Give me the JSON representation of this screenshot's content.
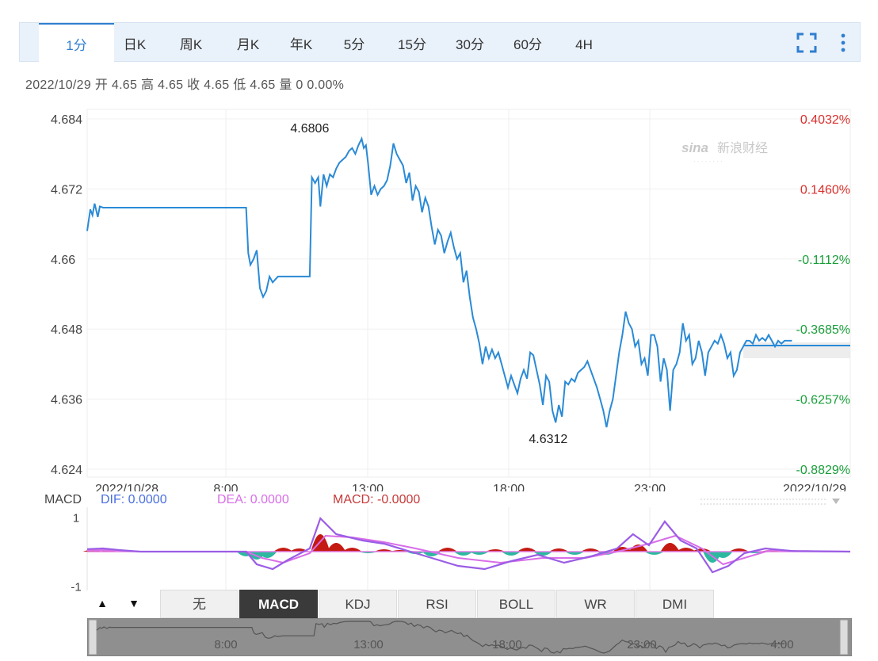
{
  "tabs": [
    {
      "label": "1分",
      "active": true
    },
    {
      "label": "日K"
    },
    {
      "label": "周K"
    },
    {
      "label": "月K"
    },
    {
      "label": "年K"
    },
    {
      "label": "5分"
    },
    {
      "label": "15分"
    },
    {
      "label": "30分"
    },
    {
      "label": "60分"
    },
    {
      "label": "4H"
    }
  ],
  "icons": {
    "fullscreen": "fullscreen-icon",
    "more": "more-vertical-icon"
  },
  "info_line": "2022/10/29 开 4.65 高 4.65 收 4.65 低 4.65 量 0 0.00%",
  "watermark": "新浪财经",
  "colors": {
    "line": "#2a8ad6",
    "up": "#d8302c",
    "down": "#1a9e3a",
    "dif": "#9b5de5",
    "hist_pos": "#c41a12",
    "hist_neg": "#2cb9a0",
    "accent": "#2f7fd0"
  },
  "chart_data": {
    "type": "line",
    "y_ticks_left": [
      "4.684",
      "4.672",
      "4.66",
      "4.648",
      "4.636",
      "4.624"
    ],
    "y_ticks_right": [
      "0.4032%",
      "0.1460%",
      "-0.1112%",
      "-0.3685%",
      "-0.6257%",
      "-0.8829%"
    ],
    "ylim": [
      4.624,
      4.684
    ],
    "x_labels": [
      "2022/10/28",
      "8:00",
      "13:00",
      "18:00",
      "23:00",
      "2022/10/29"
    ],
    "xlim": [
      0,
      1440
    ],
    "annotations": {
      "high_label": "4.6806",
      "high_x": 420,
      "low_label": "4.6312",
      "low_x": 870
    },
    "series": [
      {
        "values": [
          [
            0,
            4.6648
          ],
          [
            6,
            4.6685
          ],
          [
            10,
            4.6675
          ],
          [
            14,
            4.6695
          ],
          [
            20,
            4.6672
          ],
          [
            24,
            4.669
          ],
          [
            30,
            4.6688
          ],
          [
            300,
            4.6688
          ],
          [
            304,
            4.661
          ],
          [
            308,
            4.659
          ],
          [
            314,
            4.66
          ],
          [
            320,
            4.6615
          ],
          [
            326,
            4.655
          ],
          [
            332,
            4.6535
          ],
          [
            338,
            4.6545
          ],
          [
            344,
            4.657
          ],
          [
            350,
            4.656
          ],
          [
            360,
            4.657
          ],
          [
            420,
            4.657
          ],
          [
            424,
            4.674
          ],
          [
            430,
            4.673
          ],
          [
            436,
            4.674
          ],
          [
            440,
            4.669
          ],
          [
            446,
            4.6745
          ],
          [
            452,
            4.6725
          ],
          [
            458,
            4.6745
          ],
          [
            464,
            4.674
          ],
          [
            470,
            4.6755
          ],
          [
            476,
            4.6765
          ],
          [
            482,
            4.677
          ],
          [
            488,
            4.6775
          ],
          [
            494,
            4.6785
          ],
          [
            500,
            4.679
          ],
          [
            506,
            4.678
          ],
          [
            512,
            4.6795
          ],
          [
            518,
            4.6806
          ],
          [
            522,
            4.679
          ],
          [
            526,
            4.6795
          ],
          [
            530,
            4.6765
          ],
          [
            536,
            4.671
          ],
          [
            542,
            4.6725
          ],
          [
            548,
            4.671
          ],
          [
            554,
            4.672
          ],
          [
            560,
            4.6725
          ],
          [
            566,
            4.6735
          ],
          [
            572,
            4.676
          ],
          [
            578,
            4.6798
          ],
          [
            584,
            4.678
          ],
          [
            590,
            4.677
          ],
          [
            596,
            4.676
          ],
          [
            602,
            4.673
          ],
          [
            608,
            4.6748
          ],
          [
            614,
            4.67
          ],
          [
            620,
            4.6725
          ],
          [
            626,
            4.6715
          ],
          [
            632,
            4.668
          ],
          [
            638,
            4.6705
          ],
          [
            644,
            4.669
          ],
          [
            650,
            4.6655
          ],
          [
            656,
            4.6625
          ],
          [
            662,
            4.665
          ],
          [
            668,
            4.664
          ],
          [
            674,
            4.661
          ],
          [
            680,
            4.663
          ],
          [
            686,
            4.6645
          ],
          [
            692,
            4.662
          ],
          [
            698,
            4.66
          ],
          [
            704,
            4.661
          ],
          [
            710,
            4.656
          ],
          [
            716,
            4.658
          ],
          [
            722,
            4.6535
          ],
          [
            728,
            4.65
          ],
          [
            734,
            4.648
          ],
          [
            740,
            4.6455
          ],
          [
            746,
            4.642
          ],
          [
            752,
            4.645
          ],
          [
            758,
            4.643
          ],
          [
            764,
            4.6445
          ],
          [
            770,
            4.643
          ],
          [
            776,
            4.644
          ],
          [
            782,
            4.642
          ],
          [
            788,
            4.64
          ],
          [
            794,
            4.638
          ],
          [
            800,
            4.64
          ],
          [
            806,
            4.6385
          ],
          [
            812,
            4.637
          ],
          [
            818,
            4.6395
          ],
          [
            824,
            4.641
          ],
          [
            830,
            4.6395
          ],
          [
            836,
            4.644
          ],
          [
            842,
            4.6435
          ],
          [
            848,
            4.641
          ],
          [
            854,
            4.6385
          ],
          [
            860,
            4.635
          ],
          [
            866,
            4.64
          ],
          [
            872,
            4.639
          ],
          [
            878,
            4.634
          ],
          [
            884,
            4.632
          ],
          [
            890,
            4.635
          ],
          [
            896,
            4.633
          ],
          [
            902,
            4.639
          ],
          [
            908,
            4.6385
          ],
          [
            914,
            4.6395
          ],
          [
            920,
            4.639
          ],
          [
            926,
            4.6405
          ],
          [
            932,
            4.641
          ],
          [
            938,
            4.6415
          ],
          [
            944,
            4.6425
          ],
          [
            950,
            4.641
          ],
          [
            956,
            4.6395
          ],
          [
            962,
            4.638
          ],
          [
            968,
            4.636
          ],
          [
            974,
            4.634
          ],
          [
            980,
            4.6312
          ],
          [
            986,
            4.634
          ],
          [
            992,
            4.636
          ],
          [
            998,
            4.64
          ],
          [
            1004,
            4.644
          ],
          [
            1010,
            4.647
          ],
          [
            1016,
            4.651
          ],
          [
            1022,
            4.649
          ],
          [
            1028,
            4.648
          ],
          [
            1034,
            4.645
          ],
          [
            1040,
            4.646
          ],
          [
            1046,
            4.642
          ],
          [
            1052,
            4.643
          ],
          [
            1058,
            4.64
          ],
          [
            1064,
            4.647
          ],
          [
            1070,
            4.647
          ],
          [
            1076,
            4.645
          ],
          [
            1082,
            4.639
          ],
          [
            1088,
            4.643
          ],
          [
            1094,
            4.641
          ],
          [
            1100,
            4.634
          ],
          [
            1106,
            4.641
          ],
          [
            1112,
            4.642
          ],
          [
            1118,
            4.644
          ],
          [
            1124,
            4.649
          ],
          [
            1130,
            4.646
          ],
          [
            1136,
            4.647
          ],
          [
            1142,
            4.642
          ],
          [
            1148,
            4.643
          ],
          [
            1154,
            4.646
          ],
          [
            1160,
            4.644
          ],
          [
            1166,
            4.64
          ],
          [
            1172,
            4.644
          ],
          [
            1178,
            4.645
          ],
          [
            1184,
            4.646
          ],
          [
            1190,
            4.6455
          ],
          [
            1196,
            4.647
          ],
          [
            1202,
            4.6455
          ],
          [
            1208,
            4.643
          ],
          [
            1214,
            4.644
          ],
          [
            1220,
            4.64
          ],
          [
            1226,
            4.641
          ],
          [
            1232,
            4.644
          ],
          [
            1238,
            4.645
          ],
          [
            1244,
            4.646
          ],
          [
            1250,
            4.646
          ],
          [
            1256,
            4.6455
          ],
          [
            1262,
            4.647
          ],
          [
            1268,
            4.646
          ],
          [
            1274,
            4.6465
          ],
          [
            1280,
            4.646
          ],
          [
            1286,
            4.647
          ],
          [
            1292,
            4.646
          ],
          [
            1298,
            4.645
          ],
          [
            1304,
            4.646
          ],
          [
            1310,
            4.6455
          ],
          [
            1316,
            4.646
          ],
          [
            1322,
            4.646
          ],
          [
            1330,
            4.646
          ]
        ]
      }
    ],
    "macd": {
      "label": "MACD",
      "dif_label": "DIF: 0.0000",
      "dea_label": "DEA: 0.0000",
      "macd_label": "MACD: -0.0000",
      "y_ticks": [
        "1",
        "-1"
      ],
      "ylim": [
        -1.2,
        1.2
      ],
      "dif": [
        [
          0,
          0.08
        ],
        [
          30,
          0.1
        ],
        [
          60,
          0.05
        ],
        [
          100,
          0
        ],
        [
          300,
          0
        ],
        [
          320,
          -0.4
        ],
        [
          350,
          -0.55
        ],
        [
          380,
          -0.25
        ],
        [
          420,
          0.1
        ],
        [
          440,
          1.05
        ],
        [
          470,
          0.55
        ],
        [
          520,
          0.35
        ],
        [
          560,
          0.25
        ],
        [
          600,
          0.05
        ],
        [
          650,
          -0.2
        ],
        [
          700,
          -0.45
        ],
        [
          750,
          -0.55
        ],
        [
          800,
          -0.3
        ],
        [
          850,
          -0.1
        ],
        [
          900,
          -0.35
        ],
        [
          950,
          -0.15
        ],
        [
          1000,
          0.1
        ],
        [
          1030,
          0.55
        ],
        [
          1060,
          0.2
        ],
        [
          1090,
          0.95
        ],
        [
          1120,
          0.35
        ],
        [
          1150,
          0.1
        ],
        [
          1180,
          -0.65
        ],
        [
          1210,
          -0.45
        ],
        [
          1240,
          -0.05
        ],
        [
          1280,
          0.1
        ],
        [
          1330,
          0.02
        ],
        [
          1440,
          0
        ]
      ],
      "dea": [
        [
          0,
          0.05
        ],
        [
          60,
          0.04
        ],
        [
          100,
          0
        ],
        [
          300,
          0
        ],
        [
          330,
          -0.2
        ],
        [
          370,
          -0.35
        ],
        [
          420,
          -0.05
        ],
        [
          450,
          0.5
        ],
        [
          500,
          0.45
        ],
        [
          560,
          0.3
        ],
        [
          620,
          0.1
        ],
        [
          700,
          -0.2
        ],
        [
          780,
          -0.35
        ],
        [
          860,
          -0.2
        ],
        [
          940,
          -0.2
        ],
        [
          1000,
          0.0
        ],
        [
          1060,
          0.25
        ],
        [
          1110,
          0.5
        ],
        [
          1160,
          0.1
        ],
        [
          1200,
          -0.4
        ],
        [
          1240,
          -0.2
        ],
        [
          1290,
          0.05
        ],
        [
          1340,
          0.02
        ],
        [
          1440,
          0
        ]
      ],
      "hist": [
        [
          10,
          0.12
        ],
        [
          40,
          0.08
        ],
        [
          300,
          -0.3
        ],
        [
          320,
          -0.5
        ],
        [
          340,
          -0.4
        ],
        [
          370,
          0.25
        ],
        [
          400,
          0.2
        ],
        [
          440,
          1.1
        ],
        [
          470,
          0.55
        ],
        [
          500,
          0.25
        ],
        [
          530,
          -0.1
        ],
        [
          560,
          0.15
        ],
        [
          590,
          0.1
        ],
        [
          620,
          -0.15
        ],
        [
          650,
          -0.3
        ],
        [
          680,
          0.25
        ],
        [
          710,
          -0.25
        ],
        [
          740,
          -0.2
        ],
        [
          770,
          0.15
        ],
        [
          800,
          -0.25
        ],
        [
          830,
          0.25
        ],
        [
          860,
          -0.25
        ],
        [
          890,
          0.2
        ],
        [
          920,
          -0.2
        ],
        [
          950,
          0.2
        ],
        [
          980,
          -0.2
        ],
        [
          1010,
          0.3
        ],
        [
          1040,
          0.45
        ],
        [
          1070,
          -0.2
        ],
        [
          1100,
          0.55
        ],
        [
          1130,
          0.25
        ],
        [
          1160,
          0.2
        ],
        [
          1180,
          -0.7
        ],
        [
          1200,
          -0.4
        ],
        [
          1230,
          0.2
        ],
        [
          1260,
          -0.1
        ],
        [
          1290,
          0.1
        ]
      ]
    }
  },
  "indicator_tabs": [
    {
      "label": "无"
    },
    {
      "label": "MACD",
      "active": true
    },
    {
      "label": "KDJ"
    },
    {
      "label": "RSI"
    },
    {
      "label": "BOLL"
    },
    {
      "label": "WR"
    },
    {
      "label": "DMI"
    }
  ],
  "nav_buttons": {
    "up": "▲",
    "down": "▼"
  },
  "overview": {
    "labels": [
      "8:00",
      "13:00",
      "18:00",
      "23:00",
      "4:00"
    ]
  }
}
